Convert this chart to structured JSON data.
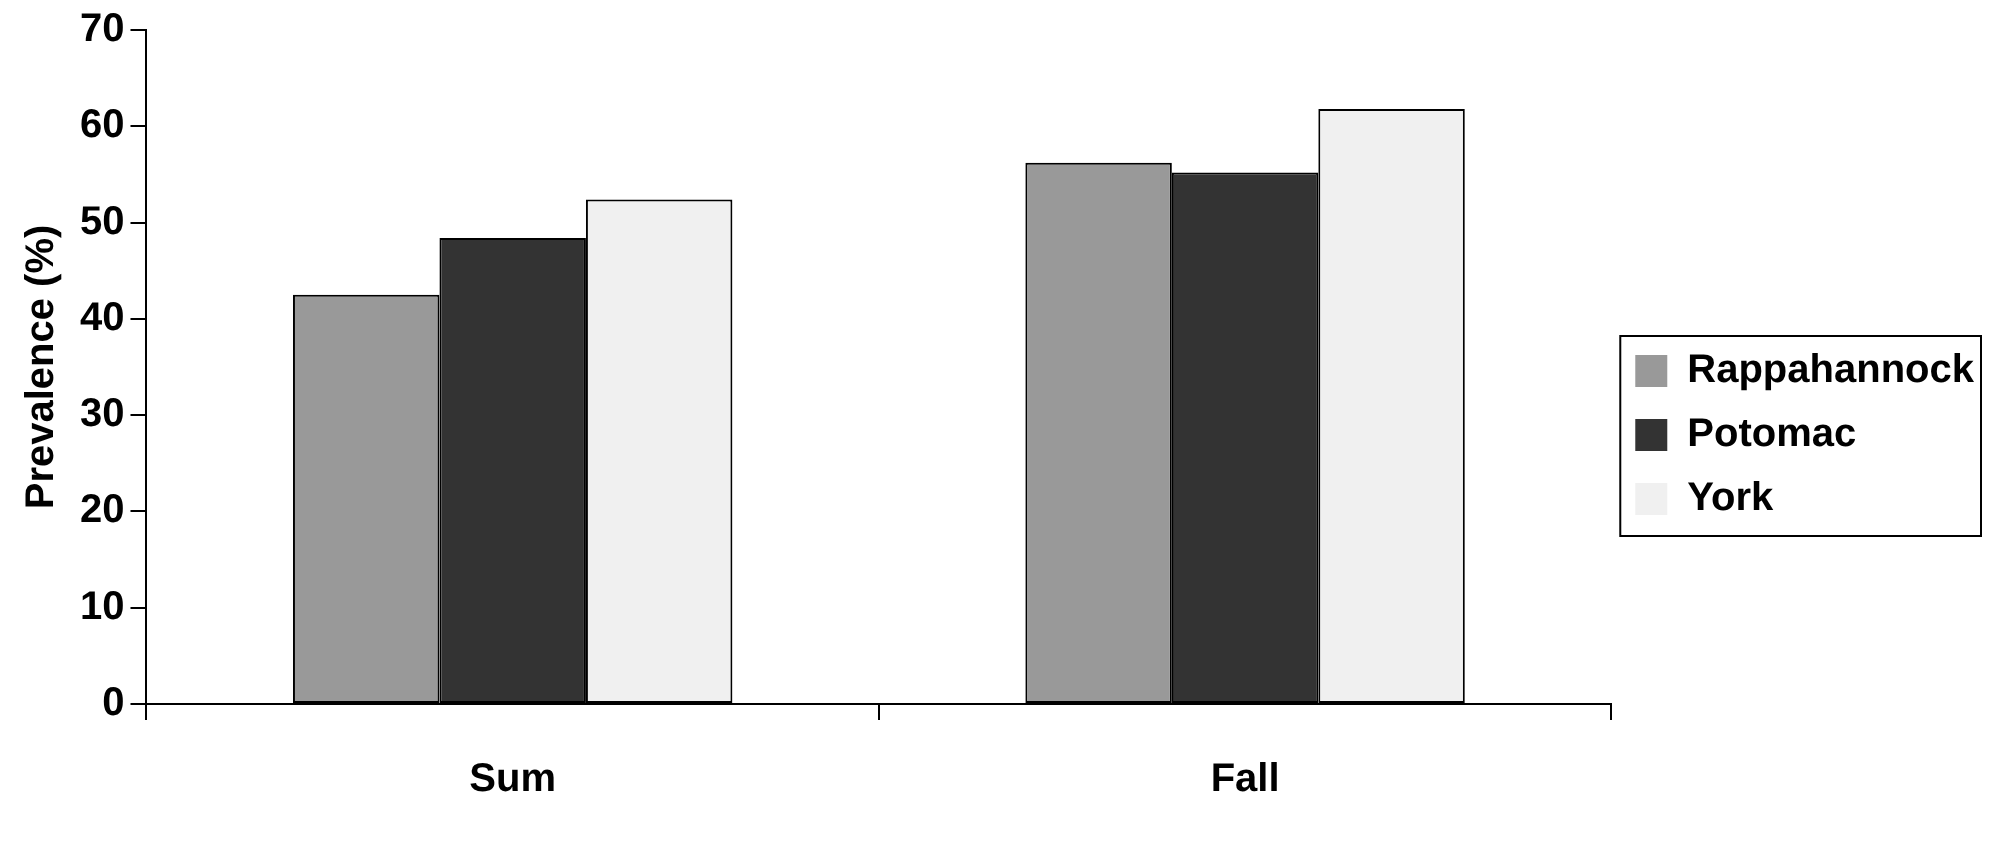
{
  "chart_data": {
    "type": "bar",
    "ylabel": "Prevalence (%)",
    "categories": [
      "Sum",
      "Fall"
    ],
    "series": [
      {
        "name": "Rappahannock",
        "color": "#999999",
        "values": [
          42.5,
          56.2
        ]
      },
      {
        "name": "Potomac",
        "color": "#333333",
        "values": [
          48.4,
          55.2
        ]
      },
      {
        "name": "York",
        "color": "#f0f0f0",
        "values": [
          52.4,
          61.8
        ]
      }
    ],
    "ylim": [
      0,
      70
    ],
    "yticks": [
      0,
      10,
      20,
      30,
      40,
      50,
      60,
      70
    ],
    "grid": false,
    "legend": "right"
  }
}
